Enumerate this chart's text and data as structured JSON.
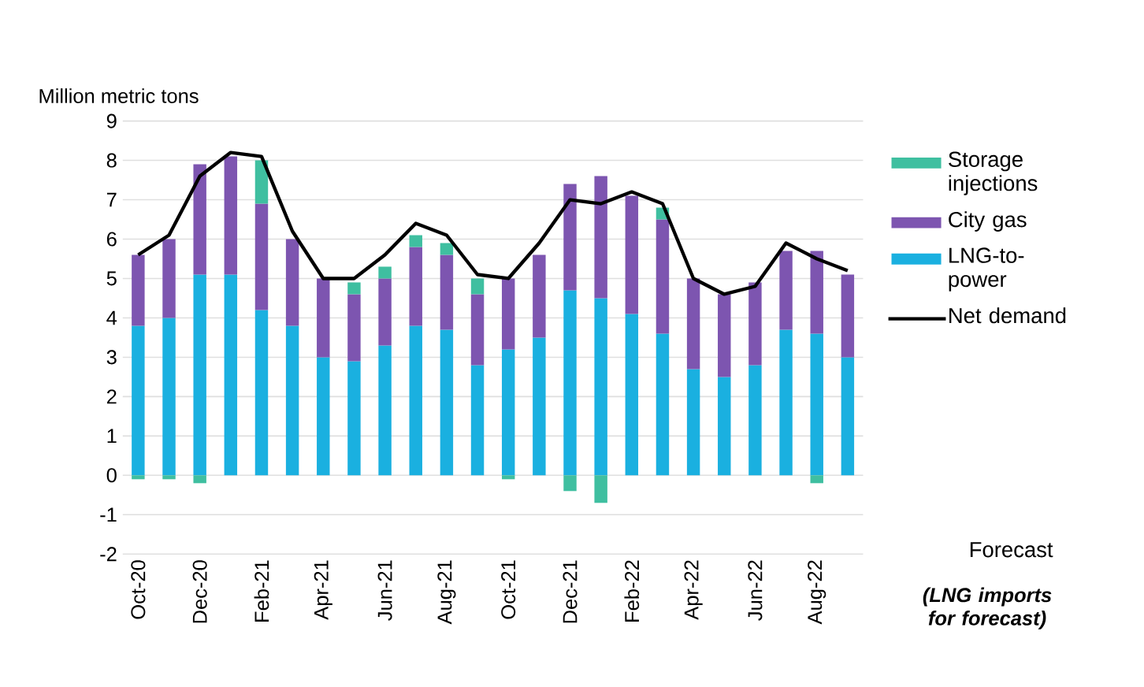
{
  "chart_data": {
    "type": "bar",
    "stacked": true,
    "ylabel": "Million metric tons",
    "categories": [
      "Oct-20",
      null,
      "Dec-20",
      null,
      "Feb-21",
      null,
      "Apr-21",
      null,
      "Jun-21",
      null,
      "Aug-21",
      null,
      "Oct-21",
      null,
      "Dec-21",
      null,
      "Feb-22",
      null,
      "Apr-22",
      null,
      "Jun-22",
      null,
      "Aug-22",
      null
    ],
    "series": [
      {
        "name": "LNG-to-power",
        "color": "#1ab0e0",
        "values": [
          3.8,
          4.0,
          5.1,
          5.1,
          4.2,
          3.8,
          3.0,
          2.9,
          3.3,
          3.8,
          3.7,
          2.8,
          3.2,
          3.5,
          4.7,
          4.5,
          4.1,
          3.6,
          2.7,
          2.5,
          2.8,
          3.7,
          3.6,
          3.0
        ]
      },
      {
        "name": "City gas",
        "color": "#7d55b0",
        "values": [
          1.8,
          2.0,
          2.8,
          3.0,
          2.7,
          2.2,
          2.0,
          1.7,
          1.7,
          2.0,
          1.9,
          1.8,
          1.8,
          2.1,
          2.7,
          3.1,
          3.0,
          2.9,
          2.3,
          2.1,
          2.1,
          2.0,
          2.1,
          2.1
        ]
      },
      {
        "name": "Storage injections",
        "color": "#3fbfa0",
        "values": [
          -0.1,
          -0.1,
          -0.2,
          0,
          1.1,
          0,
          0,
          0.3,
          0.3,
          0.3,
          0.3,
          0.4,
          -0.1,
          0,
          -0.4,
          -0.7,
          0,
          0.3,
          0,
          0,
          0,
          0,
          -0.2,
          0
        ]
      },
      {
        "name": "Net demand",
        "type": "line",
        "color": "#000000",
        "values": [
          5.6,
          6.1,
          7.6,
          8.2,
          8.1,
          6.2,
          5.0,
          5.0,
          5.6,
          6.4,
          6.1,
          5.1,
          5.0,
          5.9,
          7.0,
          6.9,
          7.2,
          6.9,
          5.0,
          4.6,
          4.8,
          5.9,
          5.5,
          5.2
        ]
      }
    ],
    "ylim": [
      -2,
      9
    ],
    "yticks": [
      -2,
      -1,
      0,
      1,
      2,
      3,
      4,
      5,
      6,
      7,
      8,
      9
    ],
    "grid": "y",
    "legend": "right",
    "annotations": [
      "Forecast",
      "(LNG imports for forecast)"
    ]
  }
}
